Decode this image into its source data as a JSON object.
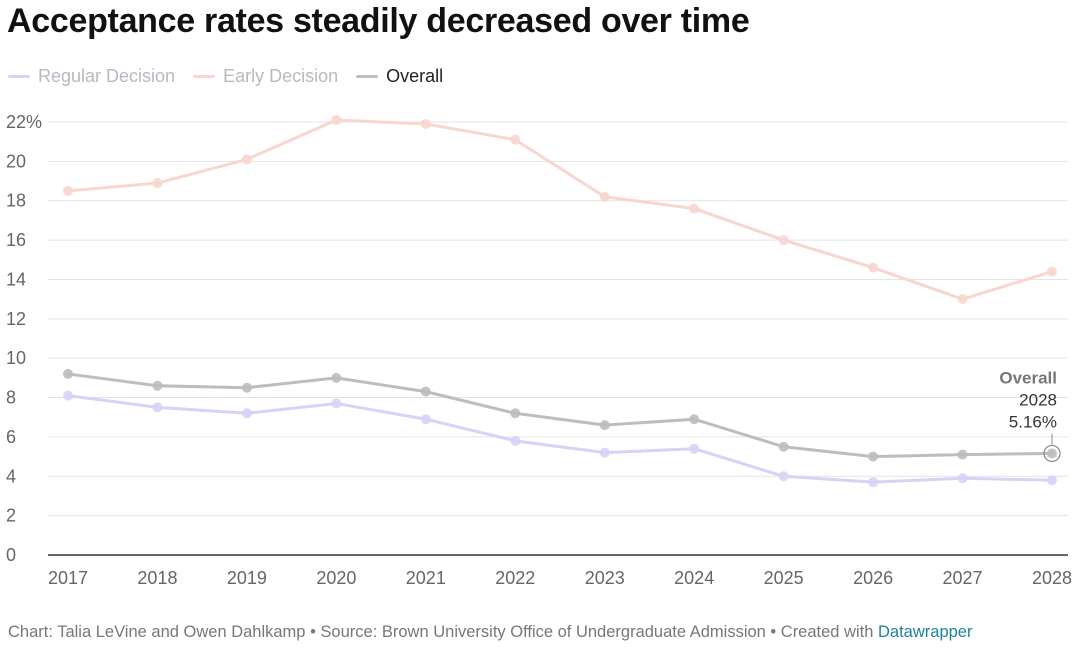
{
  "title": "Acceptance rates steadily decreased over time",
  "legend": [
    {
      "label": "Regular Decision",
      "color": "#d6d3f6",
      "text_color": "#b8b8c2"
    },
    {
      "label": "Early Decision",
      "color": "#f7d6ce",
      "text_color": "#bcb8b6"
    },
    {
      "label": "Overall",
      "color": "#bdbdbd",
      "text_color": "#222222"
    }
  ],
  "annotation": {
    "series": "Overall",
    "year": "2028",
    "value": "5.16%"
  },
  "footer": {
    "text": "Chart: Talia LeVine and Owen Dahlkamp • Source: Brown University Office of Undergraduate Admission • Created with ",
    "link": "Datawrapper"
  },
  "chart_data": {
    "type": "line",
    "title": "Acceptance rates steadily decreased over time",
    "xlabel": "",
    "ylabel": "",
    "x": [
      "2017",
      "2018",
      "2019",
      "2020",
      "2021",
      "2022",
      "2023",
      "2024",
      "2025",
      "2026",
      "2027",
      "2028"
    ],
    "ylim": [
      0,
      22
    ],
    "yticks": [
      0,
      2,
      4,
      6,
      8,
      10,
      12,
      14,
      16,
      18,
      20,
      22
    ],
    "ytick_labels": [
      "0",
      "2",
      "4",
      "6",
      "8",
      "10",
      "12",
      "14",
      "16",
      "18",
      "20",
      "22%"
    ],
    "grid": true,
    "series": [
      {
        "name": "Regular Decision",
        "color": "#d6d3f6",
        "values": [
          8.1,
          7.5,
          7.2,
          7.7,
          6.9,
          5.8,
          5.2,
          5.4,
          4.0,
          3.7,
          3.9,
          3.8
        ]
      },
      {
        "name": "Early Decision",
        "color": "#f7d6ce",
        "values": [
          18.5,
          18.9,
          20.1,
          22.1,
          21.9,
          21.1,
          18.2,
          17.6,
          16.0,
          14.6,
          13.0,
          14.4
        ]
      },
      {
        "name": "Overall",
        "color": "#bdbdbd",
        "values": [
          9.2,
          8.6,
          8.5,
          9.0,
          8.3,
          7.2,
          6.6,
          6.9,
          5.5,
          5.0,
          5.1,
          5.16
        ]
      }
    ]
  }
}
